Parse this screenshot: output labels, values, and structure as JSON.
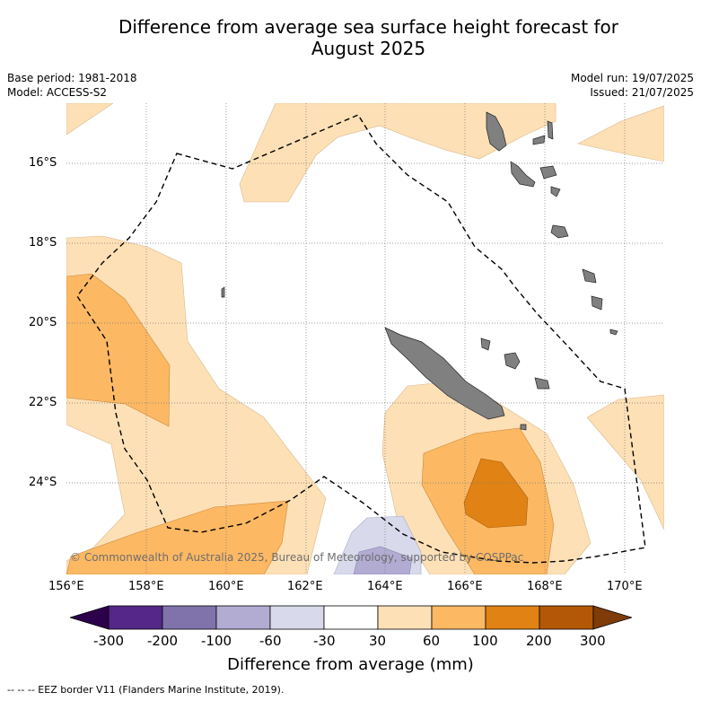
{
  "title_line1": "Difference from average sea surface height forecast for",
  "title_line2": "August 2025",
  "meta": {
    "base_period": "Base period: 1981-2018",
    "model": "Model: ACCESS-S2",
    "model_run": "Model run: 19/07/2025",
    "issued": "Issued: 21/07/2025"
  },
  "map": {
    "lat_labels": [
      "16°S",
      "18°S",
      "20°S",
      "22°S",
      "24°S"
    ],
    "lon_labels": [
      "156°E",
      "158°E",
      "160°E",
      "162°E",
      "164°E",
      "166°E",
      "168°E",
      "170°E"
    ],
    "copyright": "© Commonwealth of Australia 2025, Bureau of Meteorology, supported by COSPPac",
    "eez_line_style": "dashed",
    "land_color": "#808080"
  },
  "colorbar": {
    "title": "Difference from average (mm)",
    "tick_labels": [
      "-300",
      "-200",
      "-100",
      "-60",
      "-30",
      "30",
      "60",
      "100",
      "200",
      "300"
    ],
    "colors": [
      "#2d004b",
      "#542788",
      "#8073ac",
      "#b2abd2",
      "#d8daeb",
      "#ffffff",
      "#fee0b6",
      "#fdb863",
      "#e08214",
      "#b35806",
      "#7f3b08"
    ]
  },
  "footer": "--  --  -- EEZ border V11 (Flanders Marine Institute, 2019)."
}
